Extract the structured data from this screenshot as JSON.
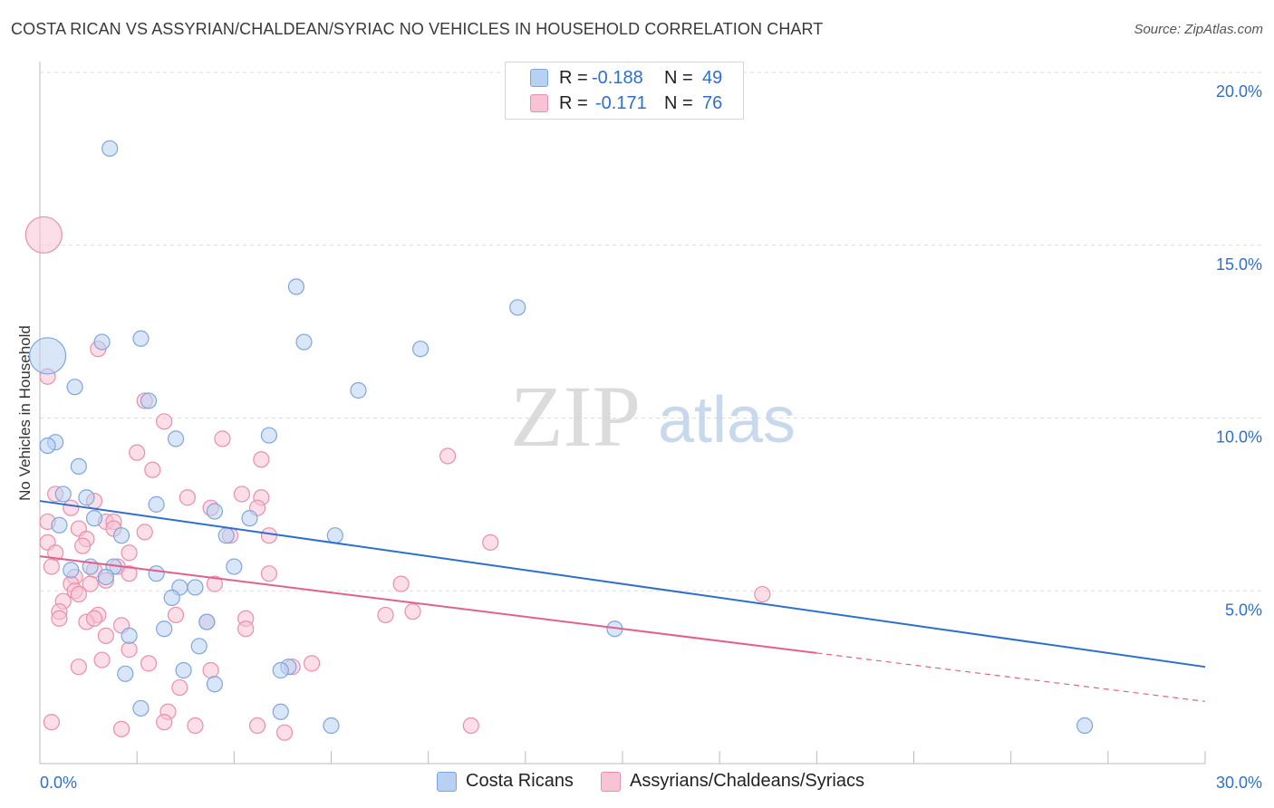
{
  "title": "COSTA RICAN VS ASSYRIAN/CHALDEAN/SYRIAC NO VEHICLES IN HOUSEHOLD CORRELATION CHART",
  "source": "Source: ZipAtlas.com",
  "watermark": {
    "zip": "ZIP",
    "atlas": "atlas"
  },
  "legend_top": {
    "rows": [
      {
        "r_label": "R =",
        "r_value": "-0.188",
        "n_label": "N =",
        "n_value": "49"
      },
      {
        "r_label": "R =",
        "r_value": "-0.171",
        "n_label": "N =",
        "n_value": "76"
      }
    ]
  },
  "legend_bottom": {
    "items": [
      {
        "label": "Costa Ricans"
      },
      {
        "label": "Assyrians/Chaldeans/Syriacs"
      }
    ]
  },
  "colors": {
    "blue_fill": "#b8d1f3",
    "blue_stroke": "#7ea6dd",
    "blue_line": "#2e6fcc",
    "pink_fill": "#f8c3d3",
    "pink_stroke": "#e98fac",
    "pink_line": "#e0628c",
    "axis_text": "#2e6fcc",
    "grid": "#dddddd"
  },
  "chart_data": {
    "type": "scatter",
    "title": "COSTA RICAN VS ASSYRIAN/CHALDEAN/SYRIAC NO VEHICLES IN HOUSEHOLD CORRELATION CHART",
    "xlabel": "",
    "ylabel": "No Vehicles in Household",
    "xlim": [
      0,
      30
    ],
    "ylim": [
      0,
      20
    ],
    "x_tick_labels": [
      "0.0%",
      "30.0%"
    ],
    "y_tick_labels": [
      "5.0%",
      "10.0%",
      "15.0%",
      "20.0%"
    ],
    "y_ticks": [
      5,
      10,
      15,
      20
    ],
    "grid": true,
    "legend_position": "top-center",
    "series": [
      {
        "name": "Costa Ricans",
        "color": "#b8d1f3",
        "trend": {
          "x": [
            0,
            30
          ],
          "y": [
            7.6,
            2.8
          ],
          "dashed_from": null
        },
        "points": [
          {
            "x": 0.2,
            "y": 11.8,
            "big": true
          },
          {
            "x": 1.8,
            "y": 17.8
          },
          {
            "x": 6.6,
            "y": 13.8
          },
          {
            "x": 12.3,
            "y": 13.2
          },
          {
            "x": 1.6,
            "y": 12.2
          },
          {
            "x": 2.6,
            "y": 12.3
          },
          {
            "x": 6.8,
            "y": 12.2
          },
          {
            "x": 9.8,
            "y": 12.0
          },
          {
            "x": 0.9,
            "y": 10.9
          },
          {
            "x": 8.2,
            "y": 10.8
          },
          {
            "x": 2.8,
            "y": 10.5
          },
          {
            "x": 0.4,
            "y": 9.3
          },
          {
            "x": 0.2,
            "y": 9.2
          },
          {
            "x": 3.5,
            "y": 9.4
          },
          {
            "x": 5.9,
            "y": 9.5
          },
          {
            "x": 1.0,
            "y": 8.6
          },
          {
            "x": 0.6,
            "y": 7.8
          },
          {
            "x": 1.2,
            "y": 7.7
          },
          {
            "x": 3.0,
            "y": 7.5
          },
          {
            "x": 4.5,
            "y": 7.3
          },
          {
            "x": 1.4,
            "y": 7.1
          },
          {
            "x": 5.4,
            "y": 7.1
          },
          {
            "x": 0.5,
            "y": 6.9
          },
          {
            "x": 2.1,
            "y": 6.6
          },
          {
            "x": 4.8,
            "y": 6.6
          },
          {
            "x": 7.6,
            "y": 6.6
          },
          {
            "x": 1.3,
            "y": 5.7
          },
          {
            "x": 1.9,
            "y": 5.7
          },
          {
            "x": 5.0,
            "y": 5.7
          },
          {
            "x": 0.8,
            "y": 5.6
          },
          {
            "x": 3.0,
            "y": 5.5
          },
          {
            "x": 1.7,
            "y": 5.4
          },
          {
            "x": 3.6,
            "y": 5.1
          },
          {
            "x": 4.0,
            "y": 5.1
          },
          {
            "x": 3.4,
            "y": 4.8
          },
          {
            "x": 4.3,
            "y": 4.1
          },
          {
            "x": 3.2,
            "y": 3.9
          },
          {
            "x": 14.8,
            "y": 3.9
          },
          {
            "x": 2.3,
            "y": 3.7
          },
          {
            "x": 4.1,
            "y": 3.4
          },
          {
            "x": 6.4,
            "y": 2.8
          },
          {
            "x": 6.2,
            "y": 2.7
          },
          {
            "x": 3.7,
            "y": 2.7
          },
          {
            "x": 2.2,
            "y": 2.6
          },
          {
            "x": 4.5,
            "y": 2.3
          },
          {
            "x": 2.6,
            "y": 1.6
          },
          {
            "x": 6.2,
            "y": 1.5
          },
          {
            "x": 7.5,
            "y": 1.1
          },
          {
            "x": 26.9,
            "y": 1.1
          }
        ]
      },
      {
        "name": "Assyrians/Chaldeans/Syriacs",
        "color": "#f8c3d3",
        "trend": {
          "x": [
            0,
            30
          ],
          "y": [
            6.0,
            1.8
          ],
          "dashed_from": 20.0
        },
        "points": [
          {
            "x": 0.1,
            "y": 15.3,
            "big": true
          },
          {
            "x": 1.5,
            "y": 12.0
          },
          {
            "x": 0.2,
            "y": 11.2
          },
          {
            "x": 2.7,
            "y": 10.5
          },
          {
            "x": 3.2,
            "y": 9.9
          },
          {
            "x": 4.7,
            "y": 9.4
          },
          {
            "x": 2.5,
            "y": 9.0
          },
          {
            "x": 10.5,
            "y": 8.9
          },
          {
            "x": 5.7,
            "y": 8.8
          },
          {
            "x": 2.9,
            "y": 8.5
          },
          {
            "x": 0.4,
            "y": 7.8
          },
          {
            "x": 3.8,
            "y": 7.7
          },
          {
            "x": 5.2,
            "y": 7.8
          },
          {
            "x": 5.7,
            "y": 7.7
          },
          {
            "x": 1.4,
            "y": 7.6
          },
          {
            "x": 0.8,
            "y": 7.4
          },
          {
            "x": 4.4,
            "y": 7.4
          },
          {
            "x": 5.6,
            "y": 7.4
          },
          {
            "x": 0.2,
            "y": 7.0
          },
          {
            "x": 1.7,
            "y": 7.0
          },
          {
            "x": 1.9,
            "y": 7.0
          },
          {
            "x": 1.0,
            "y": 6.8
          },
          {
            "x": 1.9,
            "y": 6.8
          },
          {
            "x": 2.7,
            "y": 6.7
          },
          {
            "x": 5.9,
            "y": 6.6
          },
          {
            "x": 4.9,
            "y": 6.6
          },
          {
            "x": 1.2,
            "y": 6.5
          },
          {
            "x": 0.2,
            "y": 6.4
          },
          {
            "x": 11.6,
            "y": 6.4
          },
          {
            "x": 1.1,
            "y": 6.3
          },
          {
            "x": 0.4,
            "y": 6.1
          },
          {
            "x": 2.3,
            "y": 6.1
          },
          {
            "x": 0.3,
            "y": 5.7
          },
          {
            "x": 1.4,
            "y": 5.6
          },
          {
            "x": 2.0,
            "y": 5.7
          },
          {
            "x": 5.9,
            "y": 5.5
          },
          {
            "x": 0.9,
            "y": 5.4
          },
          {
            "x": 2.3,
            "y": 5.5
          },
          {
            "x": 1.7,
            "y": 5.3
          },
          {
            "x": 1.3,
            "y": 5.2
          },
          {
            "x": 0.8,
            "y": 5.2
          },
          {
            "x": 4.5,
            "y": 5.2
          },
          {
            "x": 9.3,
            "y": 5.2
          },
          {
            "x": 0.9,
            "y": 5.0
          },
          {
            "x": 1.0,
            "y": 4.9
          },
          {
            "x": 18.6,
            "y": 4.9
          },
          {
            "x": 0.6,
            "y": 4.7
          },
          {
            "x": 0.5,
            "y": 4.4
          },
          {
            "x": 9.6,
            "y": 4.4
          },
          {
            "x": 3.5,
            "y": 4.3
          },
          {
            "x": 1.5,
            "y": 4.3
          },
          {
            "x": 8.9,
            "y": 4.3
          },
          {
            "x": 0.5,
            "y": 4.2
          },
          {
            "x": 1.2,
            "y": 4.1
          },
          {
            "x": 1.4,
            "y": 4.2
          },
          {
            "x": 5.3,
            "y": 4.2
          },
          {
            "x": 2.1,
            "y": 4.0
          },
          {
            "x": 4.3,
            "y": 4.1
          },
          {
            "x": 5.3,
            "y": 3.9
          },
          {
            "x": 1.7,
            "y": 3.7
          },
          {
            "x": 2.3,
            "y": 3.3
          },
          {
            "x": 1.6,
            "y": 3.0
          },
          {
            "x": 2.8,
            "y": 2.9
          },
          {
            "x": 7.0,
            "y": 2.9
          },
          {
            "x": 1.0,
            "y": 2.8
          },
          {
            "x": 6.5,
            "y": 2.8
          },
          {
            "x": 4.4,
            "y": 2.7
          },
          {
            "x": 3.6,
            "y": 2.2
          },
          {
            "x": 3.3,
            "y": 1.5
          },
          {
            "x": 3.2,
            "y": 1.2
          },
          {
            "x": 4.0,
            "y": 1.1
          },
          {
            "x": 5.6,
            "y": 1.1
          },
          {
            "x": 11.1,
            "y": 1.1
          },
          {
            "x": 2.1,
            "y": 1.0
          },
          {
            "x": 6.3,
            "y": 0.9
          },
          {
            "x": 0.3,
            "y": 1.2
          }
        ]
      }
    ]
  }
}
